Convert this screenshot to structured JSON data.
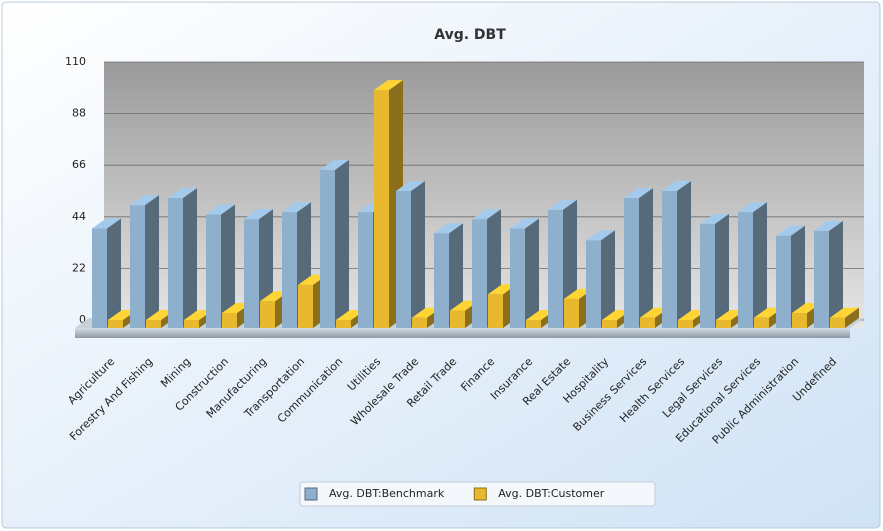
{
  "chart_data": {
    "type": "bar3d",
    "title": "Avg. DBT",
    "categories": [
      "Agriculture",
      "Forestry And Fishing",
      "Mining",
      "Construction",
      "Manufacturing",
      "Transportation",
      "Communication",
      "Utilities",
      "Wholesale Trade",
      "Retail Trade",
      "Finance",
      "Insurance",
      "Real Estate",
      "Hospitality",
      "Business Services",
      "Health Services",
      "Legal Services",
      "Educational Services",
      "Public Administration",
      "Undefined"
    ],
    "series": [
      {
        "name": "Avg. DBT:Benchmark",
        "color": "#8fb0cc",
        "values": [
          39,
          49,
          52,
          45,
          43,
          46,
          64,
          46,
          55,
          37,
          43,
          39,
          47,
          34,
          52,
          55,
          41,
          46,
          36,
          38
        ]
      },
      {
        "name": "Avg. DBT:Customer",
        "color": "#e8b92e",
        "values": [
          0,
          0,
          0,
          3,
          8,
          15,
          0,
          98,
          1,
          4,
          11,
          0,
          9,
          0,
          1,
          0,
          0,
          1,
          3,
          1
        ]
      }
    ],
    "ylim": [
      0,
      110
    ],
    "yticks": [
      0,
      22,
      44,
      66,
      88,
      110
    ],
    "grid": true,
    "legend": "bottom"
  }
}
